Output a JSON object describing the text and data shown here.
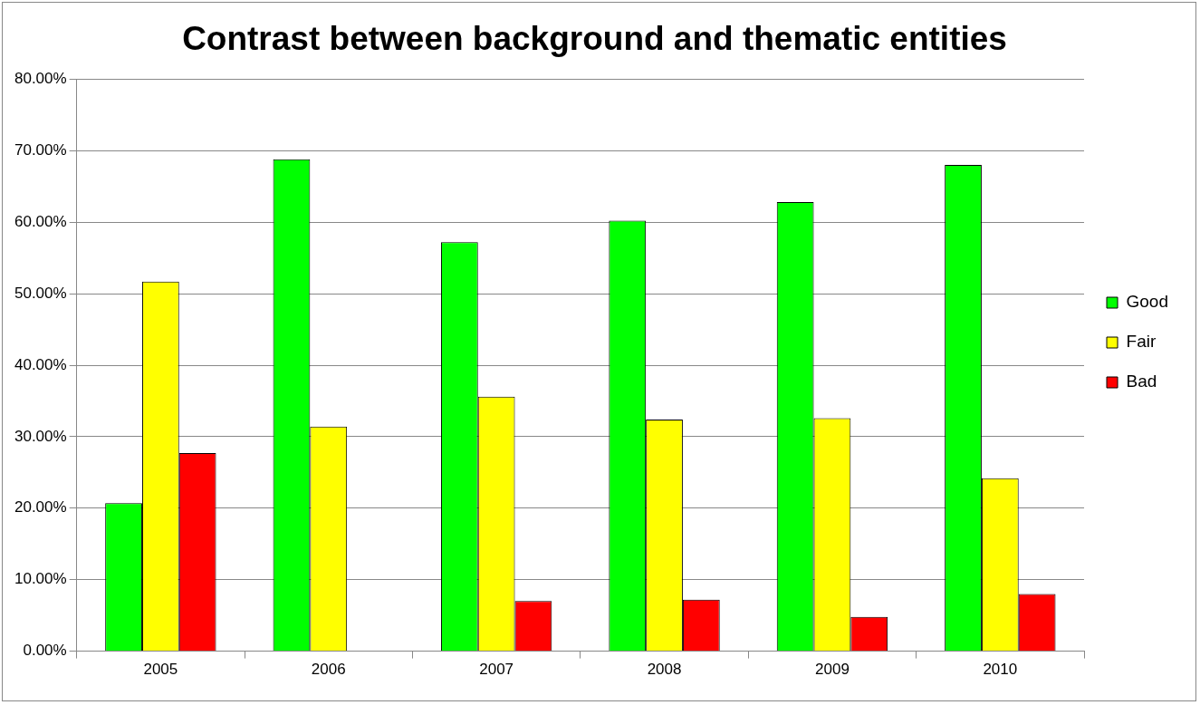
{
  "chart_data": {
    "type": "bar",
    "title": "Contrast between background and thematic entities",
    "categories": [
      "2005",
      "2006",
      "2007",
      "2008",
      "2009",
      "2010"
    ],
    "series": [
      {
        "name": "Good",
        "color": "#00ff00",
        "values": [
          20.7,
          68.8,
          57.2,
          60.2,
          62.8,
          68.0
        ]
      },
      {
        "name": "Fair",
        "color": "#ffff00",
        "values": [
          51.7,
          31.4,
          35.6,
          32.4,
          32.6,
          24.2
        ]
      },
      {
        "name": "Bad",
        "color": "#ff0000",
        "values": [
          27.7,
          0,
          7.0,
          7.2,
          4.8,
          8.0
        ]
      }
    ],
    "ylim": [
      0,
      80
    ],
    "yticks": [
      {
        "value": 0,
        "label": "0.00%"
      },
      {
        "value": 10,
        "label": "10.00%"
      },
      {
        "value": 20,
        "label": "20.00%"
      },
      {
        "value": 30,
        "label": "30.00%"
      },
      {
        "value": 40,
        "label": "40.00%"
      },
      {
        "value": 50,
        "label": "50.00%"
      },
      {
        "value": 60,
        "label": "60.00%"
      },
      {
        "value": 70,
        "label": "70.00%"
      },
      {
        "value": 80,
        "label": "80.00%"
      }
    ],
    "grid": "y",
    "legend": "right"
  }
}
